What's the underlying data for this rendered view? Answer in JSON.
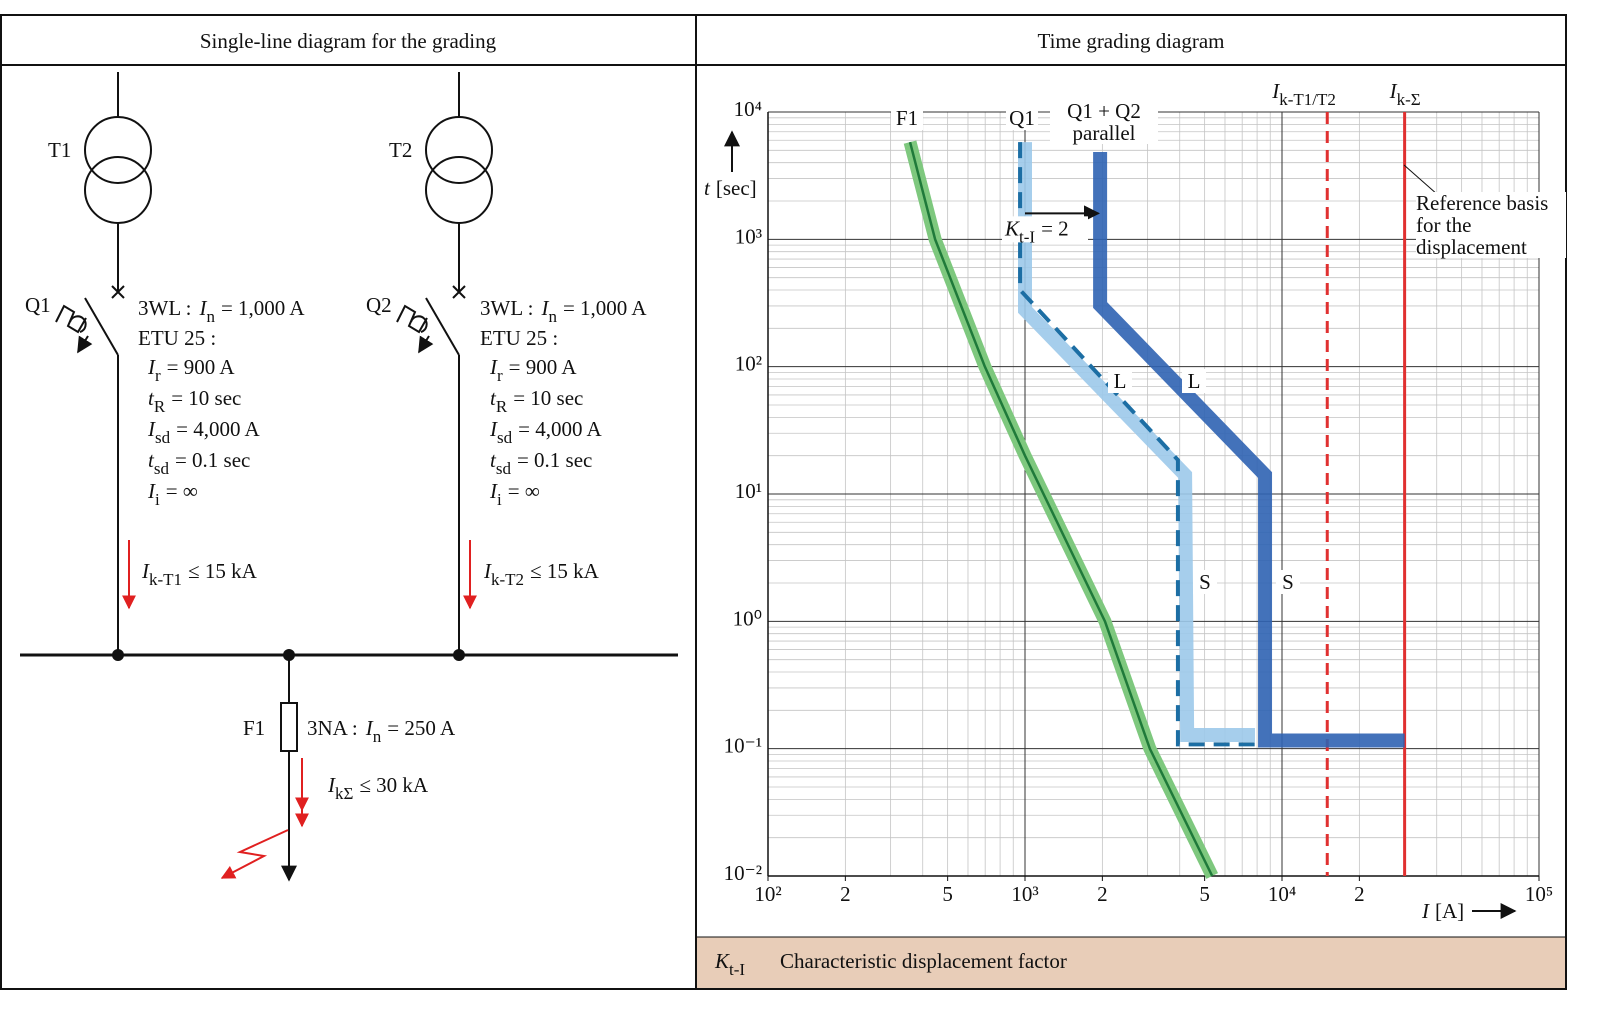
{
  "left": {
    "title": "Single-line diagram for the grading",
    "transformers": [
      "T1",
      "T2"
    ],
    "breakers": [
      {
        "label": "Q1",
        "device": "3WL :",
        "rating": {
          "sym": "I",
          "sub": "n",
          "val": "= 1,000 A"
        },
        "trip_unit": "ETU 25 :",
        "settings": [
          {
            "sym": "I",
            "sub": "r",
            "val": "= 900 A"
          },
          {
            "sym": "t",
            "sub": "R",
            "val": "= 10 sec"
          },
          {
            "sym": "I",
            "sub": "sd",
            "val": "= 4,000 A"
          },
          {
            "sym": "t",
            "sub": "sd",
            "val": "= 0.1 sec"
          },
          {
            "sym": "I",
            "sub": "i",
            "val": "= ∞"
          }
        ],
        "fault_current": {
          "sym": "I",
          "sub": "k-T1",
          "val": "≤ 15 kA"
        }
      },
      {
        "label": "Q2",
        "device": "3WL :",
        "rating": {
          "sym": "I",
          "sub": "n",
          "val": "= 1,000 A"
        },
        "trip_unit": "ETU 25 :",
        "settings": [
          {
            "sym": "I",
            "sub": "r",
            "val": "= 900 A"
          },
          {
            "sym": "t",
            "sub": "R",
            "val": "= 10 sec"
          },
          {
            "sym": "I",
            "sub": "sd",
            "val": "= 4,000 A"
          },
          {
            "sym": "t",
            "sub": "sd",
            "val": "= 0.1 sec"
          },
          {
            "sym": "I",
            "sub": "i",
            "val": "= ∞"
          }
        ],
        "fault_current": {
          "sym": "I",
          "sub": "k-T2",
          "val": "≤ 15 kA"
        }
      }
    ],
    "fuse": {
      "label": "F1",
      "device": "3NA :",
      "rating": {
        "sym": "I",
        "sub": "n",
        "val": "= 250 A"
      },
      "fault_current": {
        "sym": "I",
        "sub": "kΣ",
        "val": "≤ 30 kA"
      }
    }
  },
  "right": {
    "title": "Time grading diagram",
    "footer": {
      "sym": "K",
      "sub": "t-I",
      "text": "Characteristic displacement factor"
    }
  },
  "chart_data": {
    "type": "line",
    "xscale": "log",
    "yscale": "log",
    "grid": true,
    "x_label": {
      "sym": "I",
      "val": "[A]"
    },
    "y_label": {
      "sym": "t",
      "val": "[sec]"
    },
    "xlim": [
      100,
      100000
    ],
    "ylim": [
      0.01,
      10000
    ],
    "xticks": [
      {
        "value": 100,
        "label": "10²"
      },
      {
        "value": 200,
        "label": "2"
      },
      {
        "value": 500,
        "label": "5"
      },
      {
        "value": 1000,
        "label": "10³"
      },
      {
        "value": 2000,
        "label": "2"
      },
      {
        "value": 5000,
        "label": "5"
      },
      {
        "value": 10000,
        "label": "10⁴"
      },
      {
        "value": 20000,
        "label": "2"
      },
      {
        "value": 100000,
        "label": "10⁵"
      }
    ],
    "yticks": [
      {
        "value": 0.01,
        "label": "10⁻²"
      },
      {
        "value": 0.1,
        "label": "10⁻¹"
      },
      {
        "value": 1,
        "label": "10⁰"
      },
      {
        "value": 10,
        "label": "10¹"
      },
      {
        "value": 100,
        "label": "10²"
      },
      {
        "value": 1000,
        "label": "10³"
      },
      {
        "value": 10000,
        "label": "10⁴"
      }
    ],
    "series": [
      {
        "name": "F1",
        "color": "#1f7a3a",
        "band_color": "#7ec87e",
        "style": "band",
        "x": [
          357,
          447,
          698,
          1000,
          2047,
          3060,
          5350
        ],
        "values": [
          5800,
          1000,
          100,
          20,
          1,
          0.1,
          0.01
        ]
      },
      {
        "name": "Q1",
        "color": "#9cc9ea",
        "style": "band",
        "x": [
          1000,
          1000,
          4197,
          4275,
          7850
        ],
        "values": [
          5800,
          279,
          14.1,
          0.128,
          0.128
        ]
      },
      {
        "color": "#1c6ea4",
        "style": "dashed",
        "x": [
          957,
          957,
          3936,
          3936,
          7850
        ],
        "values": [
          5800,
          400,
          18.5,
          0.108,
          0.108
        ]
      },
      {
        "name": "Q1 + Q2 parallel",
        "color": "#2f63b3",
        "style": "band",
        "x": [
          1960,
          1960,
          8590,
          8590,
          30000
        ],
        "values": [
          4850,
          305,
          14.1,
          0.116,
          0.116
        ]
      }
    ],
    "vlines": [
      {
        "x": 15000,
        "sym": "I",
        "sub": "k-T1/T2",
        "style": "dashed",
        "color": "#e03030"
      },
      {
        "x": 30000,
        "sym": "I",
        "sub": "k-Σ",
        "style": "solid",
        "color": "#e03030"
      }
    ],
    "segment_labels": [
      "L",
      "L",
      "S",
      "S"
    ],
    "reference_note": "Reference basis for the displacement",
    "displacement": {
      "sym": "K",
      "sub": "t-I",
      "val": "= 2",
      "from": 1000,
      "to": 2000,
      "at": 1600
    }
  }
}
